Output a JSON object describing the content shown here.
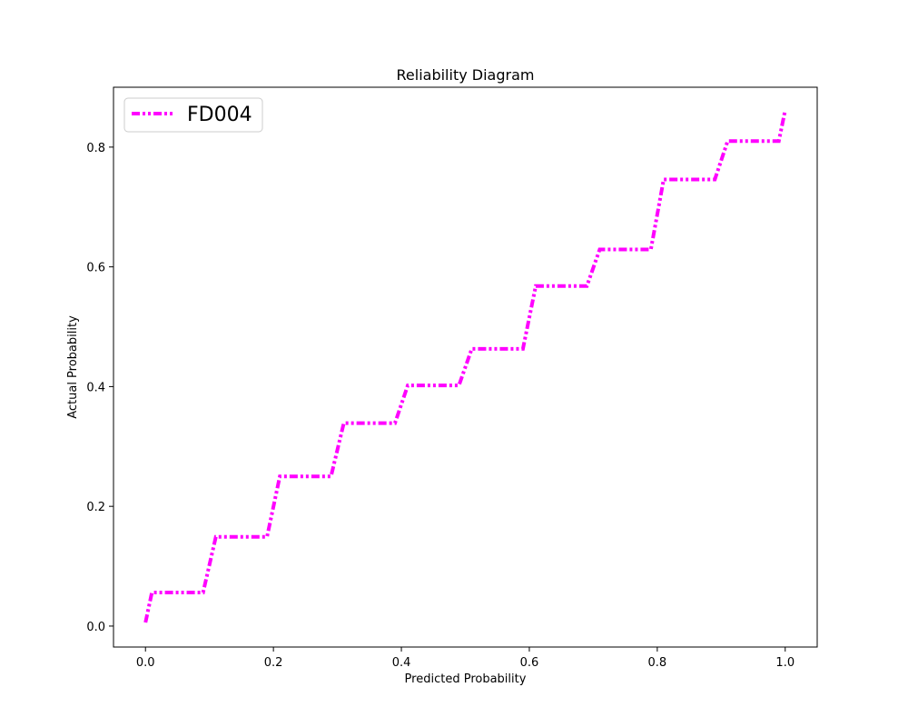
{
  "chart_data": {
    "type": "line",
    "title": "Reliability Diagram",
    "xlabel": "Predicted Probability",
    "ylabel": "Actual Probability",
    "xlim": [
      -0.05,
      1.05
    ],
    "ylim": [
      -0.035,
      0.9
    ],
    "x_ticks": [
      0.0,
      0.2,
      0.4,
      0.6,
      0.8,
      1.0
    ],
    "x_tick_labels": [
      "0.0",
      "0.2",
      "0.4",
      "0.6",
      "0.8",
      "1.0"
    ],
    "y_ticks": [
      0.0,
      0.2,
      0.4,
      0.6,
      0.8
    ],
    "y_tick_labels": [
      "0.0",
      "0.2",
      "0.4",
      "0.6",
      "0.8"
    ],
    "grid": false,
    "legend_position": "top-left",
    "series": [
      {
        "name": "FD004",
        "color": "#ff00ff",
        "line_style": "dash-dot-dot",
        "x": [
          0.0,
          0.01,
          0.09,
          0.11,
          0.19,
          0.21,
          0.29,
          0.31,
          0.39,
          0.41,
          0.49,
          0.51,
          0.59,
          0.61,
          0.69,
          0.71,
          0.79,
          0.81,
          0.89,
          0.91,
          0.99,
          1.0
        ],
        "y": [
          0.006,
          0.056,
          0.056,
          0.149,
          0.149,
          0.25,
          0.25,
          0.339,
          0.339,
          0.402,
          0.402,
          0.463,
          0.463,
          0.568,
          0.568,
          0.629,
          0.629,
          0.746,
          0.746,
          0.81,
          0.81,
          0.862
        ]
      }
    ]
  }
}
